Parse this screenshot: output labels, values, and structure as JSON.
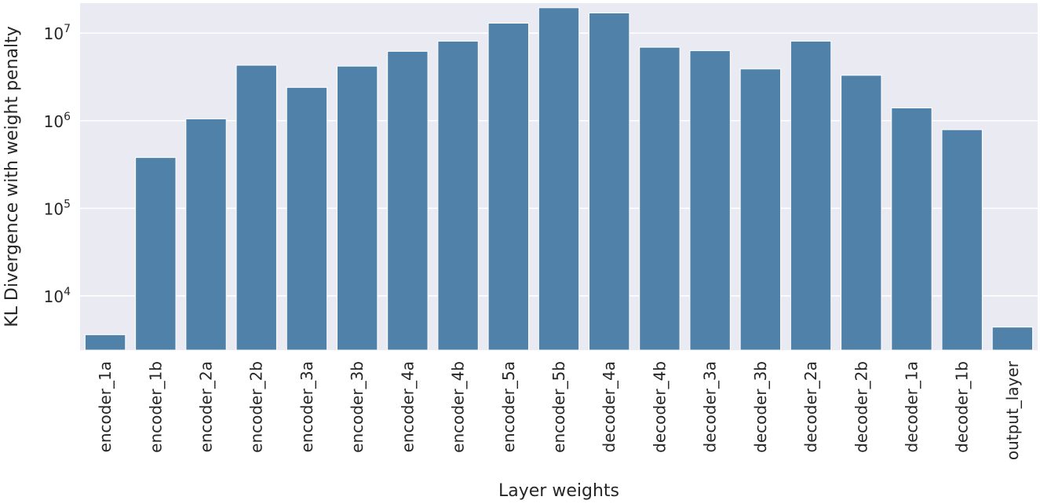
{
  "chart_data": {
    "type": "bar",
    "xlabel": "Layer weights",
    "ylabel": "KL Divergence with weight penalty",
    "yscale": "log",
    "ylim": [
      2400,
      22000000
    ],
    "grid": true,
    "colors": {
      "bar": "#4f81a9",
      "plot_bg": "#eaeaf2",
      "grid": "#ffffff"
    },
    "yticks": [
      {
        "value": 10000,
        "base": "10",
        "exp": "4"
      },
      {
        "value": 100000,
        "base": "10",
        "exp": "5"
      },
      {
        "value": 1000000,
        "base": "10",
        "exp": "6"
      },
      {
        "value": 10000000,
        "base": "10",
        "exp": "7"
      }
    ],
    "categories": [
      "encoder_1a",
      "encoder_1b",
      "encoder_2a",
      "encoder_2b",
      "encoder_3a",
      "encoder_3b",
      "encoder_4a",
      "encoder_4b",
      "encoder_5a",
      "encoder_5b",
      "decoder_4a",
      "decoder_4b",
      "decoder_3a",
      "decoder_3b",
      "decoder_2a",
      "decoder_2b",
      "decoder_1a",
      "decoder_1b",
      "output_layer"
    ],
    "values": [
      3600,
      380000,
      1050000,
      4300000,
      2400000,
      4200000,
      6200000,
      8100000,
      13000000,
      19500000,
      17000000,
      6900000,
      6300000,
      3900000,
      8100000,
      3300000,
      1400000,
      790000,
      4400
    ]
  }
}
